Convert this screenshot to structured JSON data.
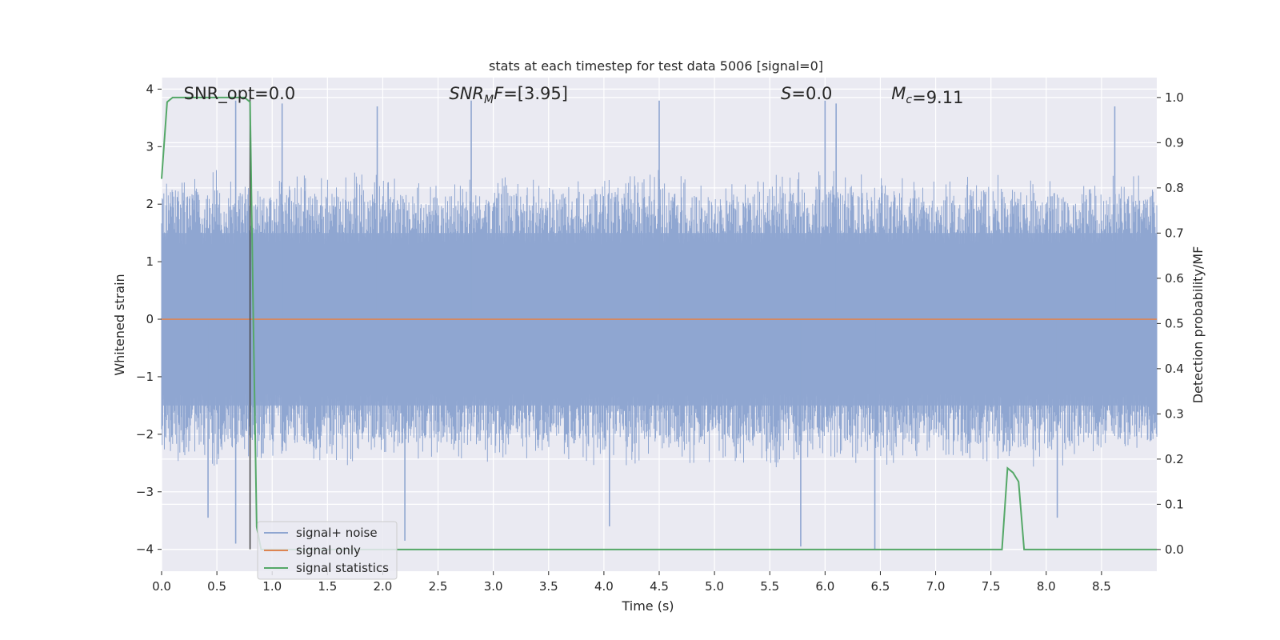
{
  "chart_data": {
    "type": "line",
    "title": "stats at each timestep for test data 5006 [signal=0]",
    "xlabel": "Time (s)",
    "ylabel": "Whitened strain",
    "y2label": "Detection probability/MF",
    "xlim": [
      0,
      9.0
    ],
    "ylim": [
      -4.38,
      4.2
    ],
    "y2lim": [
      -0.048,
      1.044
    ],
    "xticks": [
      0.0,
      0.5,
      1.0,
      1.5,
      2.0,
      2.5,
      3.0,
      3.5,
      4.0,
      4.5,
      5.0,
      5.5,
      6.0,
      6.5,
      7.0,
      7.5,
      8.0,
      8.5
    ],
    "xtick_labels": [
      "0.0",
      "0.5",
      "1.0",
      "1.5",
      "2.0",
      "2.5",
      "3.0",
      "3.5",
      "4.0",
      "4.5",
      "5.0",
      "5.5",
      "6.0",
      "6.5",
      "7.0",
      "7.5",
      "8.0",
      "8.5"
    ],
    "yticks": [
      -4,
      -3,
      -2,
      -1,
      0,
      1,
      2,
      3,
      4
    ],
    "ytick_labels": [
      "−4",
      "−3",
      "−2",
      "−1",
      "0",
      "1",
      "2",
      "3",
      "4"
    ],
    "y2ticks": [
      0.0,
      0.1,
      0.2,
      0.3,
      0.4,
      0.5,
      0.6,
      0.7,
      0.8,
      0.9,
      1.0
    ],
    "y2tick_labels": [
      "0.0",
      "0.1",
      "0.2",
      "0.3",
      "0.4",
      "0.5",
      "0.6",
      "0.7",
      "0.8",
      "0.9",
      "1.0"
    ],
    "grid": true,
    "legend_position": "lower-left",
    "series": [
      {
        "name": "signal+ noise",
        "axis": "left",
        "color": "#8fa6d1",
        "description_points": "dense noise envelope",
        "envelope": {
          "x": [
            0.0,
            0.5,
            1.0,
            1.5,
            2.0,
            2.5,
            3.0,
            3.5,
            4.0,
            4.5,
            5.0,
            5.5,
            6.0,
            6.5,
            7.0,
            7.5,
            8.0,
            8.5,
            9.0
          ],
          "upper": [
            2.5,
            2.6,
            2.4,
            2.6,
            2.5,
            2.4,
            2.5,
            2.4,
            2.5,
            2.6,
            2.4,
            2.5,
            2.6,
            2.5,
            2.4,
            2.6,
            2.5,
            2.5,
            2.6
          ],
          "lower": [
            -2.5,
            -2.6,
            -2.4,
            -2.6,
            -2.5,
            -2.4,
            -2.5,
            -2.4,
            -2.6,
            -2.5,
            -2.5,
            -2.6,
            -2.4,
            -2.6,
            -2.4,
            -2.5,
            -2.6,
            -2.5,
            -2.4
          ]
        },
        "peaks": [
          {
            "x": 0.67,
            "y": 3.8
          },
          {
            "x": 1.09,
            "y": 3.75
          },
          {
            "x": 1.95,
            "y": 3.7
          },
          {
            "x": 2.8,
            "y": 3.8
          },
          {
            "x": 4.5,
            "y": 3.8
          },
          {
            "x": 6.0,
            "y": 3.8
          },
          {
            "x": 6.1,
            "y": 3.75
          },
          {
            "x": 8.62,
            "y": 3.7
          },
          {
            "x": 0.42,
            "y": -3.45
          },
          {
            "x": 0.67,
            "y": -3.9
          },
          {
            "x": 2.2,
            "y": -3.85
          },
          {
            "x": 4.05,
            "y": -3.6
          },
          {
            "x": 5.78,
            "y": -3.95
          },
          {
            "x": 6.45,
            "y": -4.0
          },
          {
            "x": 8.1,
            "y": -3.45
          }
        ]
      },
      {
        "name": "signal only",
        "axis": "left",
        "color": "#dd8452",
        "x": [
          0.0,
          9.0
        ],
        "y": [
          0.0,
          0.0
        ]
      },
      {
        "name": "signal statistics",
        "axis": "right",
        "color": "#55a868",
        "x": [
          0.0,
          0.05,
          0.1,
          0.15,
          0.2,
          0.3,
          0.4,
          0.5,
          0.6,
          0.7,
          0.75,
          0.8,
          0.83,
          0.86,
          0.9,
          1.0,
          2.0,
          3.0,
          4.0,
          5.0,
          5.2,
          6.0,
          6.5,
          6.6,
          7.0,
          7.5,
          7.6,
          7.65,
          7.7,
          7.75,
          7.8,
          8.0,
          8.5,
          9.0
        ],
        "y": [
          0.82,
          0.99,
          1.0,
          1.0,
          1.0,
          1.0,
          1.0,
          1.0,
          1.0,
          1.0,
          1.0,
          0.99,
          0.5,
          0.05,
          0.0,
          0.0,
          0.0,
          0.0,
          0.0,
          0.0,
          0.0,
          0.0,
          0.0,
          0.0,
          0.0,
          0.0,
          0.0,
          0.18,
          0.17,
          0.15,
          0.0,
          0.0,
          0.0,
          0.0
        ]
      }
    ],
    "vertical_line": {
      "x": 0.8,
      "ymin": -4.0,
      "ymax": 4.0,
      "color": "#444444"
    },
    "annotations": [
      {
        "text": "SNR_opt=0.0",
        "x": 0.2
      },
      {
        "math_symbol": "SNR",
        "math_sub": "M",
        "math_suffix": "F",
        "text": "=[3.95]",
        "x": 2.6
      },
      {
        "math_symbol": "S",
        "text": "=0.0",
        "x": 5.6
      },
      {
        "math_symbol": "M",
        "math_sub": "c",
        "text": "=9.11",
        "x": 6.6
      }
    ],
    "colors": {
      "background": "#eaeaf2",
      "grid": "#ffffff"
    }
  }
}
